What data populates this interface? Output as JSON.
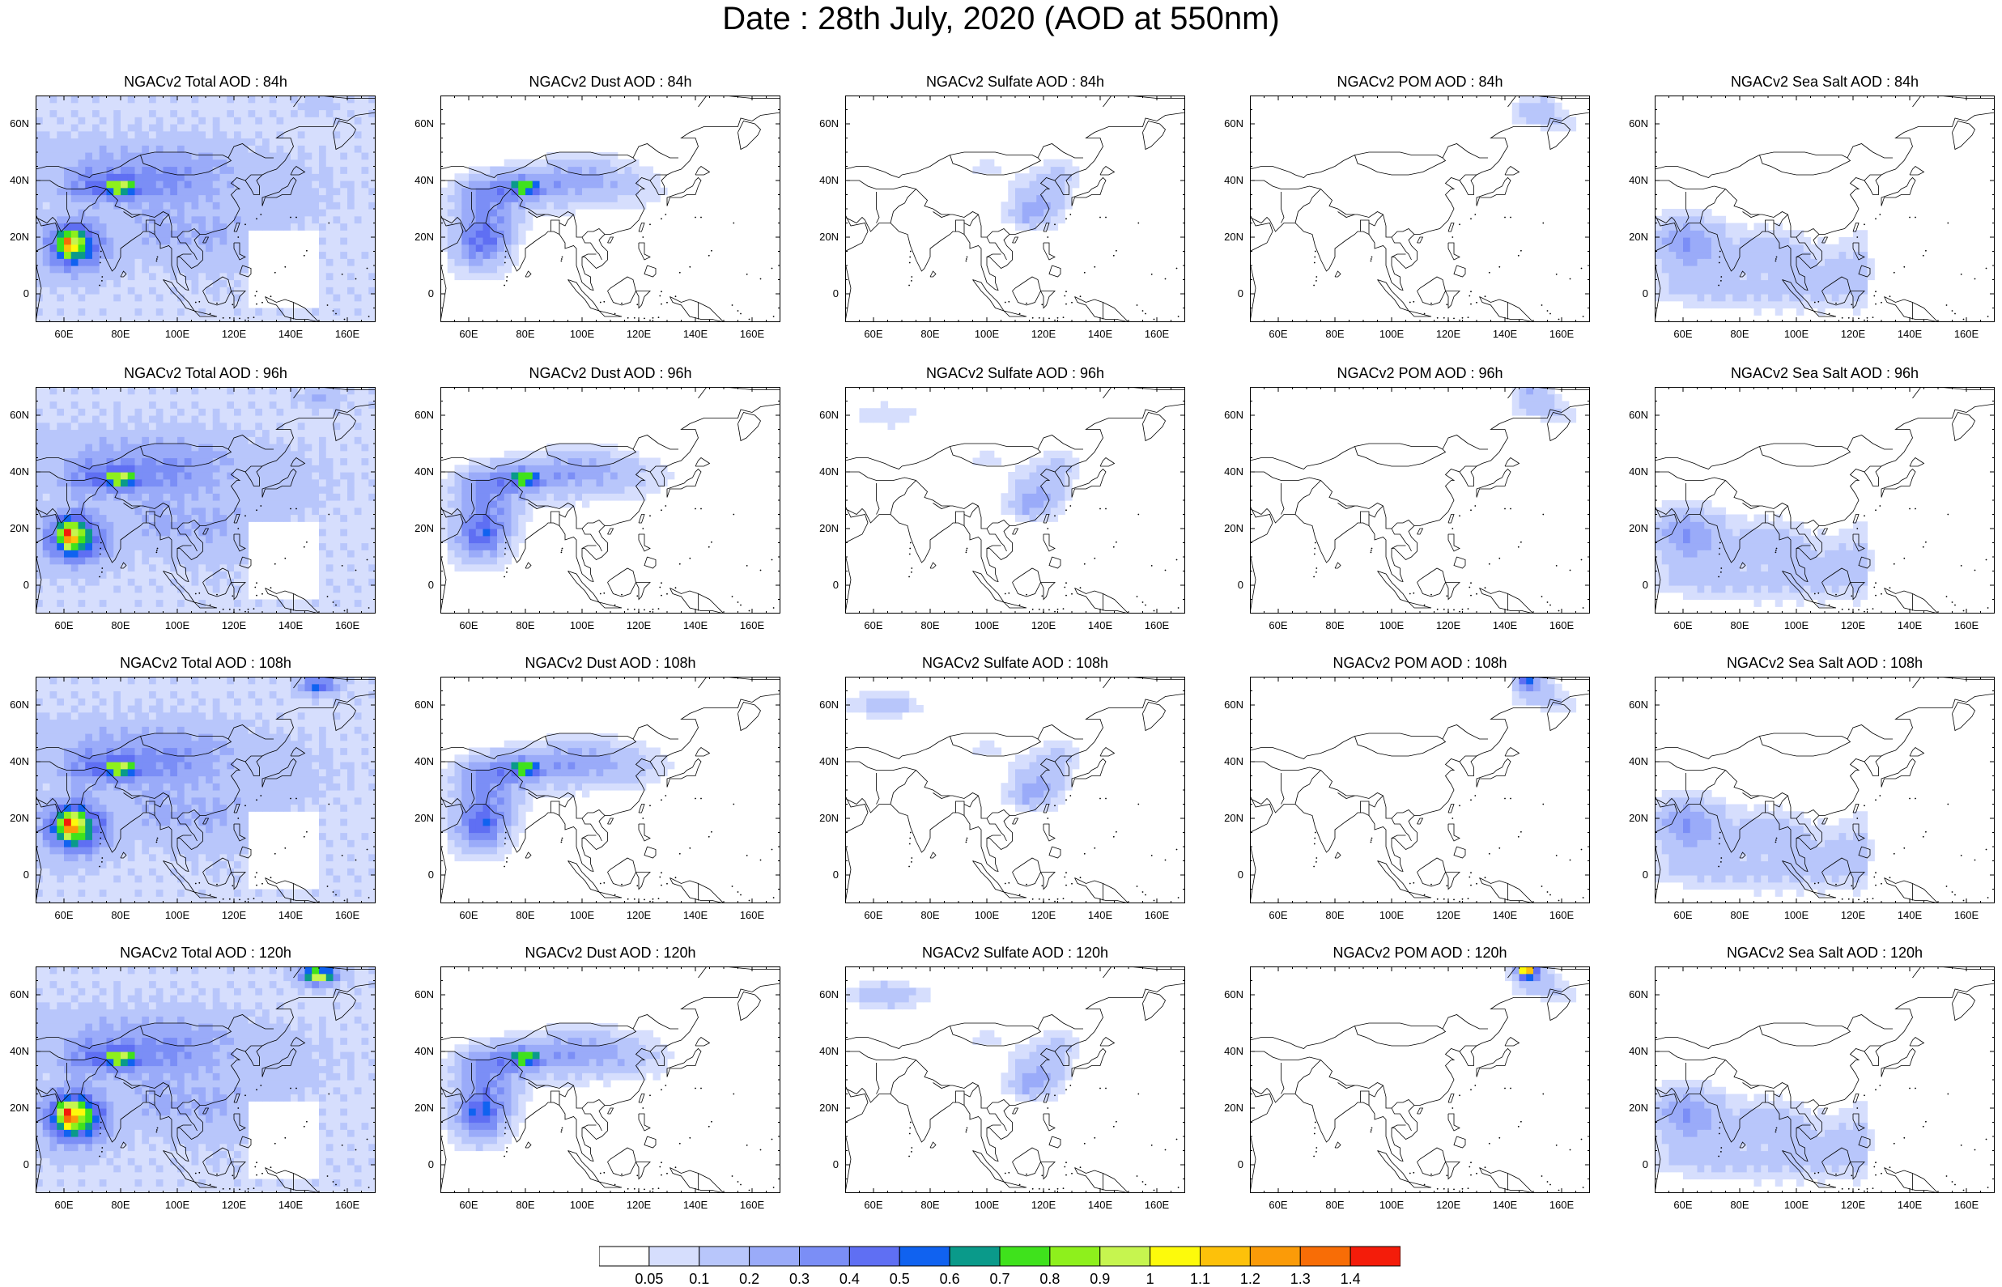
{
  "title": "Date : 28th July, 2020 (AOD at 550nm)",
  "axes": {
    "lat_ticks": [
      "60N",
      "40N",
      "20N",
      "0"
    ],
    "lat_values": [
      60,
      40,
      20,
      0
    ],
    "lon_ticks": [
      "60E",
      "80E",
      "100E",
      "120E",
      "140E",
      "160E"
    ],
    "lon_values": [
      60,
      80,
      100,
      120,
      140,
      160
    ],
    "lon_range": [
      50,
      170
    ],
    "lat_range": [
      -10,
      70
    ]
  },
  "panels": [
    {
      "title": "NGACv2 Total AOD : 84h",
      "species": "total",
      "hour": 84
    },
    {
      "title": "NGACv2 Dust AOD : 84h",
      "species": "dust",
      "hour": 84
    },
    {
      "title": "NGACv2 Sulfate AOD : 84h",
      "species": "sulfate",
      "hour": 84
    },
    {
      "title": "NGACv2 POM AOD : 84h",
      "species": "pom",
      "hour": 84
    },
    {
      "title": "NGACv2 Sea Salt AOD : 84h",
      "species": "seasalt",
      "hour": 84
    },
    {
      "title": "NGACv2 Total AOD : 96h",
      "species": "total",
      "hour": 96
    },
    {
      "title": "NGACv2 Dust AOD : 96h",
      "species": "dust",
      "hour": 96
    },
    {
      "title": "NGACv2 Sulfate AOD : 96h",
      "species": "sulfate",
      "hour": 96
    },
    {
      "title": "NGACv2 POM AOD : 96h",
      "species": "pom",
      "hour": 96
    },
    {
      "title": "NGACv2 Sea Salt AOD : 96h",
      "species": "seasalt",
      "hour": 96
    },
    {
      "title": "NGACv2 Total AOD : 108h",
      "species": "total",
      "hour": 108
    },
    {
      "title": "NGACv2 Dust AOD : 108h",
      "species": "dust",
      "hour": 108
    },
    {
      "title": "NGACv2 Sulfate AOD : 108h",
      "species": "sulfate",
      "hour": 108
    },
    {
      "title": "NGACv2 POM AOD : 108h",
      "species": "pom",
      "hour": 108
    },
    {
      "title": "NGACv2 Sea Salt AOD : 108h",
      "species": "seasalt",
      "hour": 108
    },
    {
      "title": "NGACv2 Total AOD : 120h",
      "species": "total",
      "hour": 120
    },
    {
      "title": "NGACv2 Dust AOD : 120h",
      "species": "dust",
      "hour": 120
    },
    {
      "title": "NGACv2 Sulfate AOD : 120h",
      "species": "sulfate",
      "hour": 120
    },
    {
      "title": "NGACv2 POM AOD : 120h",
      "species": "pom",
      "hour": 120
    },
    {
      "title": "NGACv2 Sea Salt  AOD : 120h",
      "species": "seasalt",
      "hour": 120
    }
  ],
  "colorbar": {
    "labels": [
      "0.05",
      "0.1",
      "0.2",
      "0.3",
      "0.4",
      "0.5",
      "0.6",
      "0.7",
      "0.8",
      "0.9",
      "1",
      "1.1",
      "1.2",
      "1.3",
      "1.4"
    ],
    "colors": [
      "#ffffff",
      "#d6defd",
      "#b8c6fb",
      "#9aabf9",
      "#7b8ef6",
      "#5f6ff3",
      "#1062f0",
      "#0a9a8a",
      "#3fe21c",
      "#8ef01c",
      "#c6f54f",
      "#fdfa0b",
      "#fdc10a",
      "#fb9b08",
      "#f86d06",
      "#f41c0a"
    ]
  }
}
